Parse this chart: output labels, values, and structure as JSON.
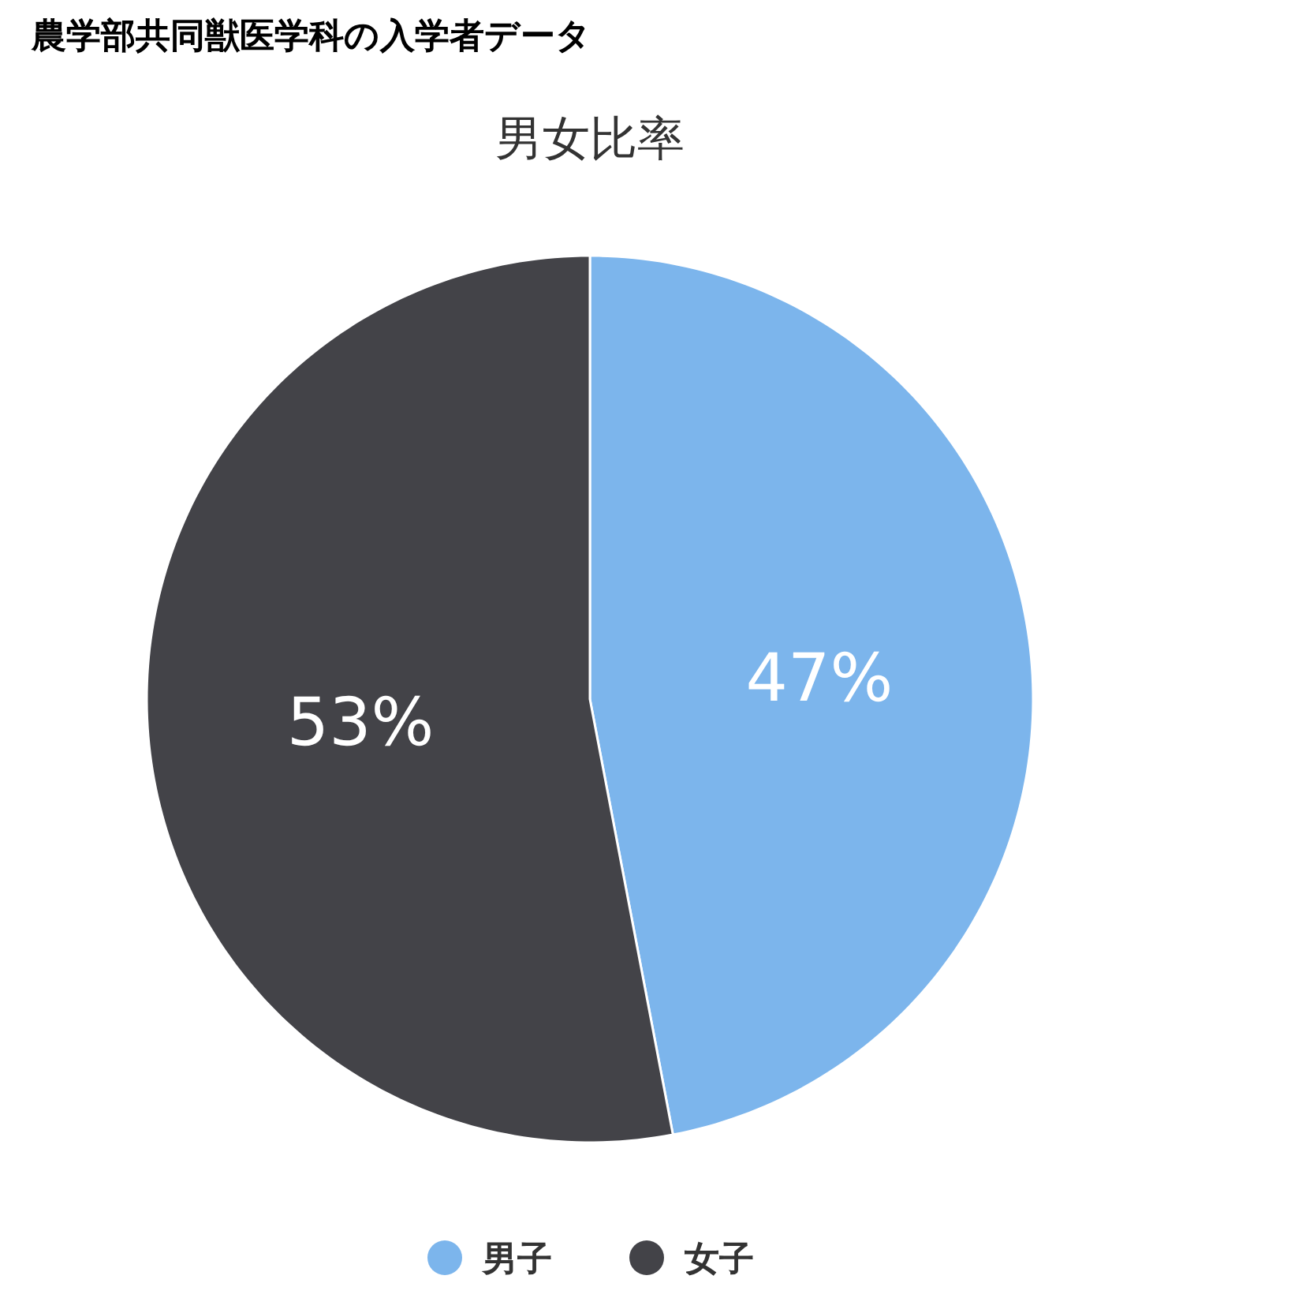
{
  "chart_data": {
    "type": "pie",
    "title": "農学部共同獣医学科の入学者データ",
    "subtitle": "男女比率",
    "categories": [
      "男子",
      "女子"
    ],
    "values": [
      47,
      53
    ],
    "colors": [
      "#7cb5ec",
      "#434348"
    ],
    "value_labels": [
      "47%",
      "53%"
    ],
    "legend": "bottom"
  }
}
